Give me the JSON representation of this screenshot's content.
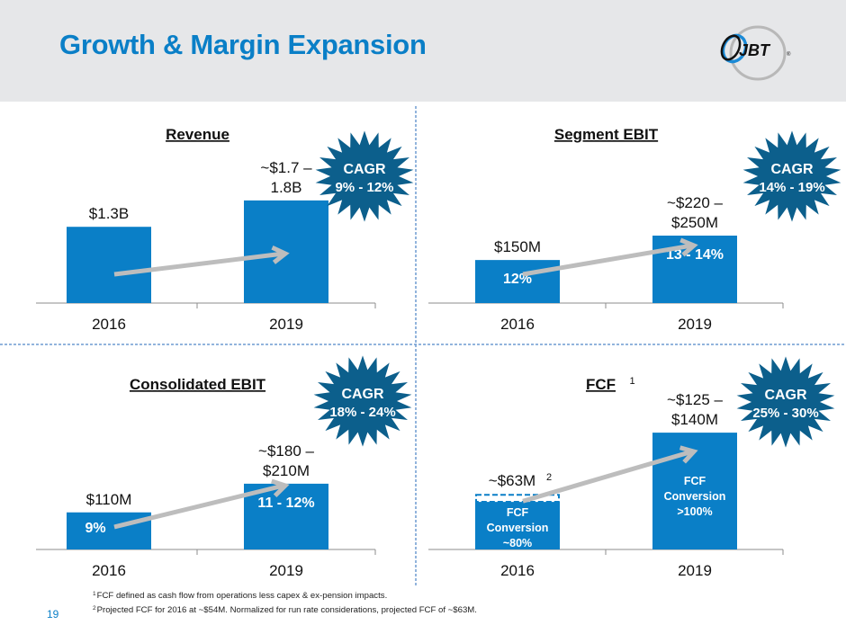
{
  "header": {
    "title": "Growth & Margin Expansion",
    "logo_text": "JBT",
    "logo_registered": "®"
  },
  "colors": {
    "bar": "#0a7fc7",
    "starburst": "#0c5f8c",
    "arrow": "#bdbdbd",
    "axis": "#8c8c8c",
    "divider": "#6f9bd1",
    "title": "#0a7fc7"
  },
  "chart_data": [
    {
      "type": "bar",
      "title": "Revenue",
      "title_superscript": "",
      "categories": [
        "2016",
        "2019"
      ],
      "values": [
        1.3,
        1.75
      ],
      "unit": "$B",
      "value_labels": [
        [
          "$1.3B"
        ],
        [
          "~$1.7 –",
          "1.8B"
        ]
      ],
      "inner_labels": [
        [],
        []
      ],
      "cagr": {
        "label": "CAGR",
        "range": "9% - 12%"
      },
      "ylim": [
        0,
        2.3
      ]
    },
    {
      "type": "bar",
      "title": "Segment EBIT",
      "title_superscript": "",
      "categories": [
        "2016",
        "2019"
      ],
      "values": [
        150,
        235
      ],
      "unit": "$M",
      "value_labels": [
        [
          "$150M"
        ],
        [
          "~$220 –",
          "$250M"
        ]
      ],
      "inner_labels": [
        [
          "12%"
        ],
        [
          "13 - 14%"
        ]
      ],
      "cagr": {
        "label": "CAGR",
        "range": "14% - 19%"
      },
      "ylim": [
        0,
        470
      ]
    },
    {
      "type": "bar",
      "title": "Consolidated EBIT",
      "title_superscript": "",
      "categories": [
        "2016",
        "2019"
      ],
      "values": [
        110,
        195
      ],
      "unit": "$M",
      "value_labels": [
        [
          "$110M"
        ],
        [
          "~$180 –",
          "$210M"
        ]
      ],
      "inner_labels": [
        [
          "9%"
        ],
        [
          "11 - 12%"
        ]
      ],
      "cagr": {
        "label": "CAGR",
        "range": "18% - 24%"
      },
      "ylim": [
        0,
        400
      ]
    },
    {
      "type": "bar",
      "title": "FCF",
      "title_superscript": "1",
      "categories": [
        "2016",
        "2019"
      ],
      "values": [
        63,
        132.5
      ],
      "dashed_base_value": 54,
      "unit": "$M",
      "value_labels": [
        [
          "~$63M"
        ],
        [
          "~$125 –",
          "$140M"
        ]
      ],
      "value_label_superscripts": [
        "2",
        ""
      ],
      "inner_labels": [
        [
          "FCF",
          "Conversion",
          "~80%"
        ],
        [
          "FCF",
          "Conversion",
          ">100%"
        ]
      ],
      "cagr": {
        "label": "CAGR",
        "range": "25% - 30%"
      },
      "ylim": [
        0,
        153
      ]
    }
  ],
  "footnotes": [
    {
      "marker": "1",
      "text": "FCF defined as cash flow from operations less capex & ex-pension impacts."
    },
    {
      "marker": "2",
      "text": "Projected FCF for 2016 at ~$54M. Normalized for run rate considerations, projected FCF of ~$63M."
    }
  ],
  "page_number": "19"
}
